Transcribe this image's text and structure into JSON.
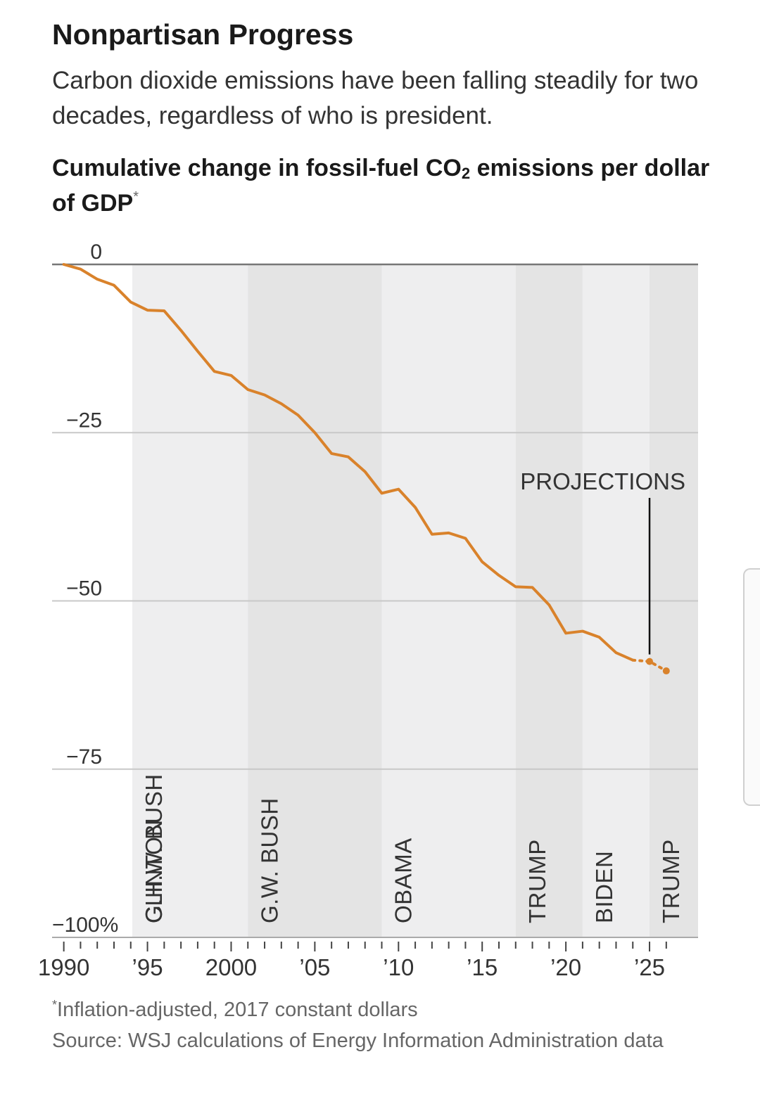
{
  "header": {
    "title": "Nonpartisan Progress",
    "subtitle": "Carbon dioxide emissions have been falling steadily for two decades, regardless of who is president."
  },
  "chart_heading": {
    "text_main": "Cumulative change in fossil-fuel CO",
    "text_sub": "2",
    "text_rest": " emissions per dollar of GDP",
    "asterisk": "*"
  },
  "chart_data": {
    "type": "line",
    "ylim": [
      -100,
      0
    ],
    "xlim": [
      1989.3,
      2027.9
    ],
    "y_ticks": [
      {
        "value": 0,
        "label": "0"
      },
      {
        "value": -25,
        "label": "−25"
      },
      {
        "value": -50,
        "label": "−50"
      },
      {
        "value": -75,
        "label": "−75"
      },
      {
        "value": -100,
        "label": "−100%"
      }
    ],
    "x_ticks": [
      {
        "value": 1990,
        "label": "1990"
      },
      {
        "value": 1995,
        "label": "’95"
      },
      {
        "value": 2000,
        "label": "2000"
      },
      {
        "value": 2005,
        "label": "’05"
      },
      {
        "value": 2010,
        "label": "’10"
      },
      {
        "value": 2015,
        "label": "’15"
      },
      {
        "value": 2020,
        "label": "’20"
      },
      {
        "value": 2025,
        "label": "’25"
      }
    ],
    "presidents": [
      {
        "name": "G.H.W. BUSH",
        "start": 1989.0,
        "end": 1993.0
      },
      {
        "name": "CLINTON",
        "start": 1993.0,
        "end": 2001.0
      },
      {
        "name": "G.W. BUSH",
        "start": 2001.0,
        "end": 2009.0
      },
      {
        "name": "OBAMA",
        "start": 2009.0,
        "end": 2017.0
      },
      {
        "name": "TRUMP",
        "start": 2017.0,
        "end": 2021.0
      },
      {
        "name": "BIDEN",
        "start": 2021.0,
        "end": 2025.0
      },
      {
        "name": "TRUMP",
        "start": 2025.0,
        "end": 2028.2
      }
    ],
    "series": [
      {
        "values": [
          {
            "x": 1990,
            "y": 0
          },
          {
            "x": 1991,
            "y": -0.7
          },
          {
            "x": 1992,
            "y": -2.2
          },
          {
            "x": 1993,
            "y": -3.1
          },
          {
            "x": 1994,
            "y": -5.6
          },
          {
            "x": 1995,
            "y": -6.8
          },
          {
            "x": 1996,
            "y": -6.9
          },
          {
            "x": 1997,
            "y": -9.8
          },
          {
            "x": 1998,
            "y": -12.9
          },
          {
            "x": 1999,
            "y": -15.9
          },
          {
            "x": 2000,
            "y": -16.5
          },
          {
            "x": 2001,
            "y": -18.6
          },
          {
            "x": 2002,
            "y": -19.4
          },
          {
            "x": 2003,
            "y": -20.7
          },
          {
            "x": 2004,
            "y": -22.4
          },
          {
            "x": 2005,
            "y": -25.0
          },
          {
            "x": 2006,
            "y": -28.1
          },
          {
            "x": 2007,
            "y": -28.6
          },
          {
            "x": 2008,
            "y": -30.8
          },
          {
            "x": 2009,
            "y": -34.0
          },
          {
            "x": 2010,
            "y": -33.4
          },
          {
            "x": 2011,
            "y": -36.1
          },
          {
            "x": 2012,
            "y": -40.1
          },
          {
            "x": 2013,
            "y": -39.9
          },
          {
            "x": 2014,
            "y": -40.7
          },
          {
            "x": 2015,
            "y": -44.2
          },
          {
            "x": 2016,
            "y": -46.2
          },
          {
            "x": 2017,
            "y": -47.9
          },
          {
            "x": 2018,
            "y": -48.0
          },
          {
            "x": 2019,
            "y": -50.6
          },
          {
            "x": 2020,
            "y": -54.8
          },
          {
            "x": 2021,
            "y": -54.5
          },
          {
            "x": 2022,
            "y": -55.4
          },
          {
            "x": 2023,
            "y": -57.7
          },
          {
            "x": 2024,
            "y": -58.8
          }
        ]
      },
      {
        "projection": true,
        "values": [
          {
            "x": 2024,
            "y": -58.8
          },
          {
            "x": 2025,
            "y": -59.0
          },
          {
            "x": 2026,
            "y": -60.4
          }
        ]
      }
    ],
    "annotations": [
      {
        "text": "PROJECTIONS",
        "x": 2025,
        "y": -59.0
      }
    ],
    "line_color": "#d9822b",
    "band_colors": [
      "#e4e4e4",
      "#eeeeef"
    ],
    "grid": true
  },
  "footer": {
    "footnote_asterisk": "*",
    "footnote": "Inflation-adjusted, 2017 constant dollars",
    "source": "Source: WSJ calculations of Energy Information Administration data"
  }
}
